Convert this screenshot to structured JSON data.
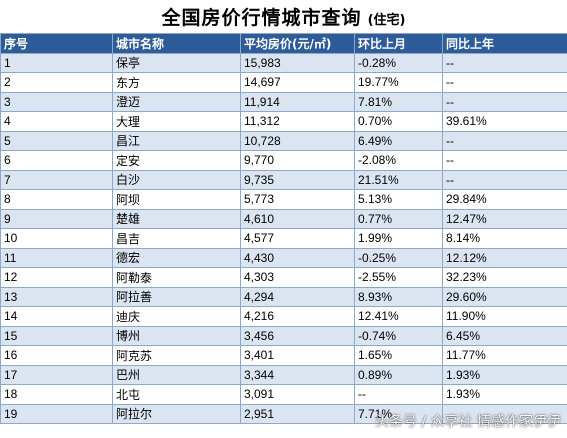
{
  "title": {
    "main": "全国房价行情城市查询",
    "sub": "(住宅)"
  },
  "headers": [
    "序号",
    "城市名称",
    "平均房价(元/㎡)",
    "环比上月",
    "同比上年"
  ],
  "rows": [
    [
      "1",
      "保亭",
      "15,983",
      "-0.28%",
      "--"
    ],
    [
      "2",
      "东方",
      "14,697",
      "19.77%",
      "--"
    ],
    [
      "3",
      "澄迈",
      "11,914",
      "7.81%",
      "--"
    ],
    [
      "4",
      "大理",
      "11,312",
      "0.70%",
      "39.61%"
    ],
    [
      "5",
      "昌江",
      "10,728",
      "6.49%",
      "--"
    ],
    [
      "6",
      "定安",
      "9,770",
      "-2.08%",
      "--"
    ],
    [
      "7",
      "白沙",
      "9,735",
      "21.51%",
      "--"
    ],
    [
      "8",
      "阿坝",
      "5,773",
      "5.13%",
      "29.84%"
    ],
    [
      "9",
      "楚雄",
      "4,610",
      "0.77%",
      "12.47%"
    ],
    [
      "10",
      "昌吉",
      "4,577",
      "1.99%",
      "8.14%"
    ],
    [
      "11",
      "德宏",
      "4,430",
      "-0.25%",
      "12.12%"
    ],
    [
      "12",
      "阿勒泰",
      "4,303",
      "-2.55%",
      "32.23%"
    ],
    [
      "13",
      "阿拉善",
      "4,294",
      "8.93%",
      "29.60%"
    ],
    [
      "14",
      "迪庆",
      "4,216",
      "12.41%",
      "11.90%"
    ],
    [
      "15",
      "博州",
      "3,456",
      "-0.74%",
      "6.45%"
    ],
    [
      "16",
      "阿克苏",
      "3,401",
      "1.65%",
      "11.77%"
    ],
    [
      "17",
      "巴州",
      "3,344",
      "0.89%",
      "1.93%"
    ],
    [
      "18",
      "北屯",
      "3,091",
      "--",
      "1.93%"
    ],
    [
      "19",
      "阿拉尔",
      "2,951",
      "7.71%",
      ""
    ]
  ],
  "watermark": "头条号 / 众享社 情感作家伊伊",
  "colors": {
    "header_bg": "#2e5b9a",
    "row_alt": "#dbe5f1",
    "border": "#8ea9c8"
  }
}
